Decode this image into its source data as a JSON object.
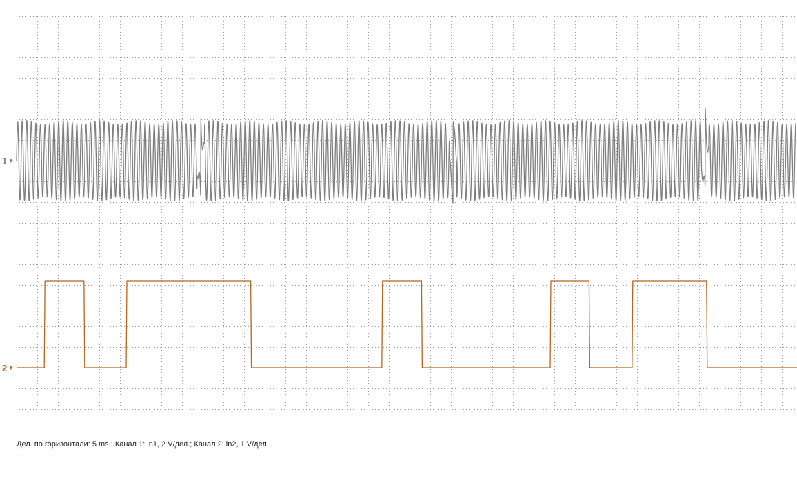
{
  "chart_data": {
    "type": "line",
    "title": "",
    "xlabel": "",
    "ylabel": "",
    "grid": true,
    "x_divisions": 38,
    "y_divisions": 19,
    "time_per_division_ms": 5,
    "xlim_ms": [
      0,
      190
    ],
    "channels": [
      {
        "id": "1",
        "marker_label": "1",
        "input": "in1",
        "volts_per_division": 2,
        "color": "#7f7f7f",
        "kind": "oscillation",
        "baseline_division": 7,
        "amplitude_divisions": 2,
        "period_ms": 1.1,
        "dropout_times_ms": [
          44.5,
          105.5,
          166.5
        ]
      },
      {
        "id": "2",
        "marker_label": "2",
        "input": "in2",
        "volts_per_division": 1,
        "color": "#b5651d",
        "kind": "square",
        "baseline_division": 17,
        "high_divisions": 4.2,
        "transitions_ms": [
          6.7,
          16.3,
          26.5,
          56.6,
          88.3,
          97.9,
          129.0,
          138.4,
          148.8,
          166.8
        ]
      }
    ]
  },
  "footer": {
    "text": "Дел. по горизонтали: 5 ms.; Канал 1: in1, 2 V/дел.; Канал 2: in2, 1 V/дел."
  }
}
